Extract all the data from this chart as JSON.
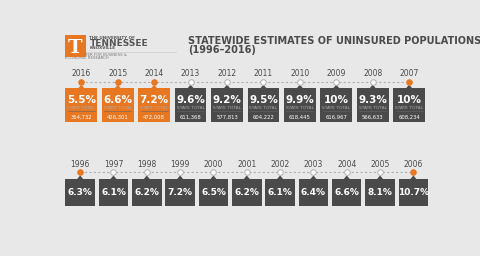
{
  "title_line1": "STATEWIDE ESTIMATES OF UNINSURED POPULATIONS",
  "title_line2": "(1996–2016)",
  "bg_color": "#e8e8e8",
  "row1_years": [
    "2016",
    "2015",
    "2014",
    "2013",
    "2012",
    "2011",
    "2010",
    "2009",
    "2008",
    "2007"
  ],
  "row1_pcts": [
    "5.5%",
    "6.6%",
    "7.2%",
    "9.6%",
    "9.2%",
    "9.5%",
    "9.9%",
    "10%",
    "9.3%",
    "10%"
  ],
  "row1_totals": [
    "364,732",
    "426,301",
    "472,008",
    "611,368",
    "577,813",
    "604,222",
    "618,445",
    "616,967",
    "566,633",
    "608,234"
  ],
  "row1_highlight": [
    true,
    true,
    true,
    false,
    false,
    false,
    false,
    false,
    false,
    false
  ],
  "row2_years": [
    "1996",
    "1997",
    "1998",
    "1999",
    "2000",
    "2001",
    "2002",
    "2003",
    "2004",
    "2005",
    "2006"
  ],
  "row2_pcts": [
    "6.3%",
    "6.1%",
    "6.2%",
    "7.2%",
    "6.5%",
    "6.2%",
    "6.1%",
    "6.4%",
    "6.6%",
    "8.1%",
    "10.7%"
  ],
  "orange_color": "#E87722",
  "dark_color": "#4a4a4a",
  "timeline_color": "#b0b0b0",
  "dot_orange": "#E87722",
  "dot_white": "#ffffff",
  "text_light": "#aaaaaa",
  "text_white": "#ffffff",
  "text_dark": "#4a4a4a"
}
